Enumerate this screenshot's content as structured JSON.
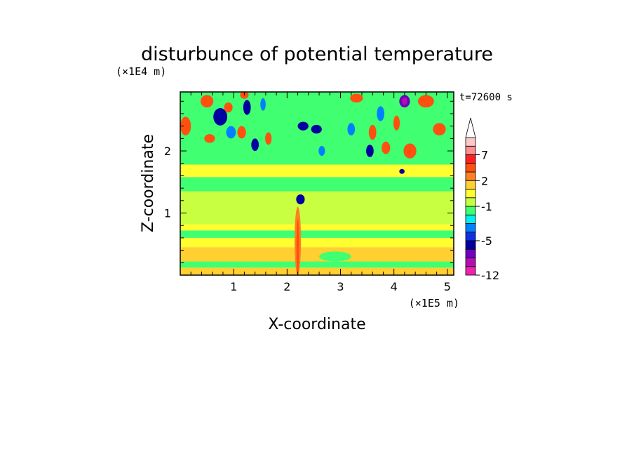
{
  "chart_data": {
    "type": "heatmap",
    "title": "disturbunce of potential temperature",
    "xlabel": "X-coordinate",
    "ylabel": "Z-coordinate",
    "x_unit_label": "(×1E5 m)",
    "y_unit_label": "(×1E4 m)",
    "time_label": "t=72600 s",
    "xlim": [
      0,
      5.12
    ],
    "ylim": [
      0,
      2.95
    ],
    "x_ticks": [
      1,
      2,
      3,
      4,
      5
    ],
    "x_tick_labels": [
      "1",
      "2",
      "3",
      "4",
      "5"
    ],
    "y_ticks": [
      1,
      2
    ],
    "y_tick_labels": [
      "1",
      "2"
    ],
    "colorbar": {
      "levels": [
        -12,
        -10,
        -8,
        -6,
        -5,
        -4,
        -3,
        -2,
        -1,
        0,
        1,
        2,
        3,
        5,
        7,
        9
      ],
      "tick_values": [
        -12,
        -5,
        -1,
        2,
        7
      ],
      "tick_labels": [
        "-12",
        "-5",
        "-1",
        "2",
        "7"
      ],
      "colors": [
        "#f020b0",
        "#b010b0",
        "#7000c0",
        "#0000a0",
        "#1030e0",
        "#0080ff",
        "#00f0f0",
        "#40ff70",
        "#c8ff40",
        "#ffff30",
        "#ffd030",
        "#ff8020",
        "#ff5010",
        "#ff2020",
        "#ff9090",
        "#ffc8c8"
      ],
      "extend": "max"
    },
    "bands": [
      {
        "z_range": [
          0.0,
          0.12
        ],
        "value": 1.5
      },
      {
        "z_range": [
          0.12,
          0.22
        ],
        "value": -1.5
      },
      {
        "z_range": [
          0.22,
          0.45
        ],
        "value": 1.5
      },
      {
        "z_range": [
          0.45,
          0.6
        ],
        "value": 0.5
      },
      {
        "z_range": [
          0.6,
          0.72
        ],
        "value": -1.5
      },
      {
        "z_range": [
          0.72,
          0.82
        ],
        "value": 0.5
      },
      {
        "z_range": [
          0.82,
          1.35
        ],
        "value": -0.5
      },
      {
        "z_range": [
          1.35,
          1.58
        ],
        "value": -1.5
      },
      {
        "z_range": [
          1.58,
          1.78
        ],
        "value": 0.5
      },
      {
        "z_range": [
          1.78,
          2.95
        ],
        "value": -1.5
      }
    ],
    "blobs": [
      {
        "x": 2.25,
        "z": 1.22,
        "rx": 0.08,
        "rz": 0.08,
        "value": -5.5
      },
      {
        "x": 0.75,
        "z": 2.55,
        "rx": 0.13,
        "rz": 0.14,
        "value": -5.5
      },
      {
        "x": 0.95,
        "z": 2.3,
        "rx": 0.09,
        "rz": 0.1,
        "value": -3.5
      },
      {
        "x": 1.25,
        "z": 2.7,
        "rx": 0.07,
        "rz": 0.12,
        "value": -5.5
      },
      {
        "x": 1.4,
        "z": 2.1,
        "rx": 0.07,
        "rz": 0.1,
        "value": -5.5
      },
      {
        "x": 1.55,
        "z": 2.75,
        "rx": 0.05,
        "rz": 0.1,
        "value": -3.5
      },
      {
        "x": 2.3,
        "z": 2.4,
        "rx": 0.1,
        "rz": 0.07,
        "value": -5.5
      },
      {
        "x": 2.55,
        "z": 2.35,
        "rx": 0.1,
        "rz": 0.07,
        "value": -5.5
      },
      {
        "x": 2.65,
        "z": 2.0,
        "rx": 0.06,
        "rz": 0.08,
        "value": -3.5
      },
      {
        "x": 3.2,
        "z": 2.35,
        "rx": 0.07,
        "rz": 0.1,
        "value": -3.5
      },
      {
        "x": 3.55,
        "z": 2.0,
        "rx": 0.07,
        "rz": 0.1,
        "value": -5.5
      },
      {
        "x": 3.75,
        "z": 2.6,
        "rx": 0.07,
        "rz": 0.12,
        "value": -3.5
      },
      {
        "x": 4.2,
        "z": 2.8,
        "rx": 0.1,
        "rz": 0.1,
        "value": -7.0
      },
      {
        "x": 4.2,
        "z": 2.8,
        "rx": 0.05,
        "rz": 0.06,
        "value": -9.0
      },
      {
        "x": 4.15,
        "z": 1.67,
        "rx": 0.05,
        "rz": 0.04,
        "value": -5.5
      },
      {
        "x": 0.5,
        "z": 2.8,
        "rx": 0.12,
        "rz": 0.1,
        "value": 4.0
      },
      {
        "x": 0.1,
        "z": 2.4,
        "rx": 0.1,
        "rz": 0.15,
        "value": 4.0
      },
      {
        "x": 0.55,
        "z": 2.2,
        "rx": 0.1,
        "rz": 0.07,
        "value": 4.0
      },
      {
        "x": 0.9,
        "z": 2.7,
        "rx": 0.08,
        "rz": 0.08,
        "value": 4.0
      },
      {
        "x": 1.15,
        "z": 2.3,
        "rx": 0.08,
        "rz": 0.1,
        "value": 4.0
      },
      {
        "x": 1.65,
        "z": 2.2,
        "rx": 0.06,
        "rz": 0.1,
        "value": 4.0
      },
      {
        "x": 1.2,
        "z": 2.9,
        "rx": 0.08,
        "rz": 0.06,
        "value": 4.0
      },
      {
        "x": 3.3,
        "z": 2.85,
        "rx": 0.12,
        "rz": 0.07,
        "value": 4.0
      },
      {
        "x": 3.6,
        "z": 2.3,
        "rx": 0.07,
        "rz": 0.12,
        "value": 4.0
      },
      {
        "x": 3.85,
        "z": 2.05,
        "rx": 0.08,
        "rz": 0.1,
        "value": 4.0
      },
      {
        "x": 4.3,
        "z": 2.0,
        "rx": 0.12,
        "rz": 0.12,
        "value": 4.0
      },
      {
        "x": 4.6,
        "z": 2.8,
        "rx": 0.15,
        "rz": 0.1,
        "value": 4.0
      },
      {
        "x": 4.85,
        "z": 2.35,
        "rx": 0.12,
        "rz": 0.1,
        "value": 4.0
      },
      {
        "x": 4.05,
        "z": 2.45,
        "rx": 0.06,
        "rz": 0.12,
        "value": 4.0
      },
      {
        "x": 2.2,
        "z": 0.55,
        "rx": 0.06,
        "rz": 0.55,
        "value": 2.5
      },
      {
        "x": 2.2,
        "z": 0.45,
        "rx": 0.025,
        "rz": 0.45,
        "value": 4.0
      },
      {
        "x": 1.6,
        "z": 1.0,
        "rx": 0.35,
        "rz": 0.12,
        "value": -0.5
      },
      {
        "x": 2.9,
        "z": 0.3,
        "rx": 0.3,
        "rz": 0.08,
        "value": -1.5
      }
    ]
  }
}
